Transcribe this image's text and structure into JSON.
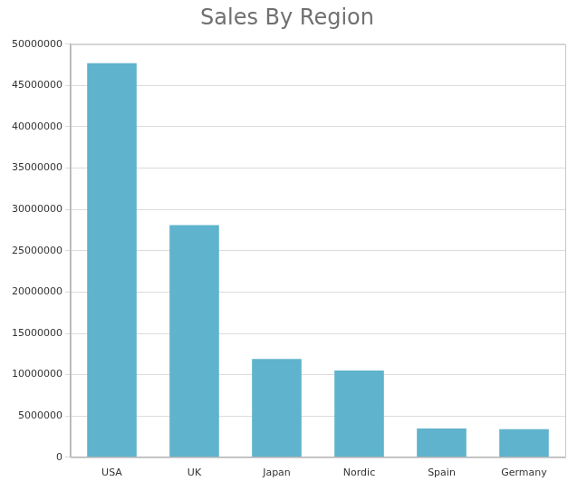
{
  "chart_data": {
    "type": "bar",
    "title": "Sales By Region",
    "categories": [
      "USA",
      "UK",
      "Japan",
      "Nordic",
      "Spain",
      "Germany"
    ],
    "values": [
      47700000,
      28100000,
      11900000,
      10500000,
      3500000,
      3400000
    ],
    "color": "#5fb3cc",
    "ylim": [
      0,
      50000000
    ],
    "yticks": [
      0,
      5000000,
      10000000,
      15000000,
      20000000,
      25000000,
      30000000,
      35000000,
      40000000,
      45000000,
      50000000
    ],
    "grid": true
  }
}
